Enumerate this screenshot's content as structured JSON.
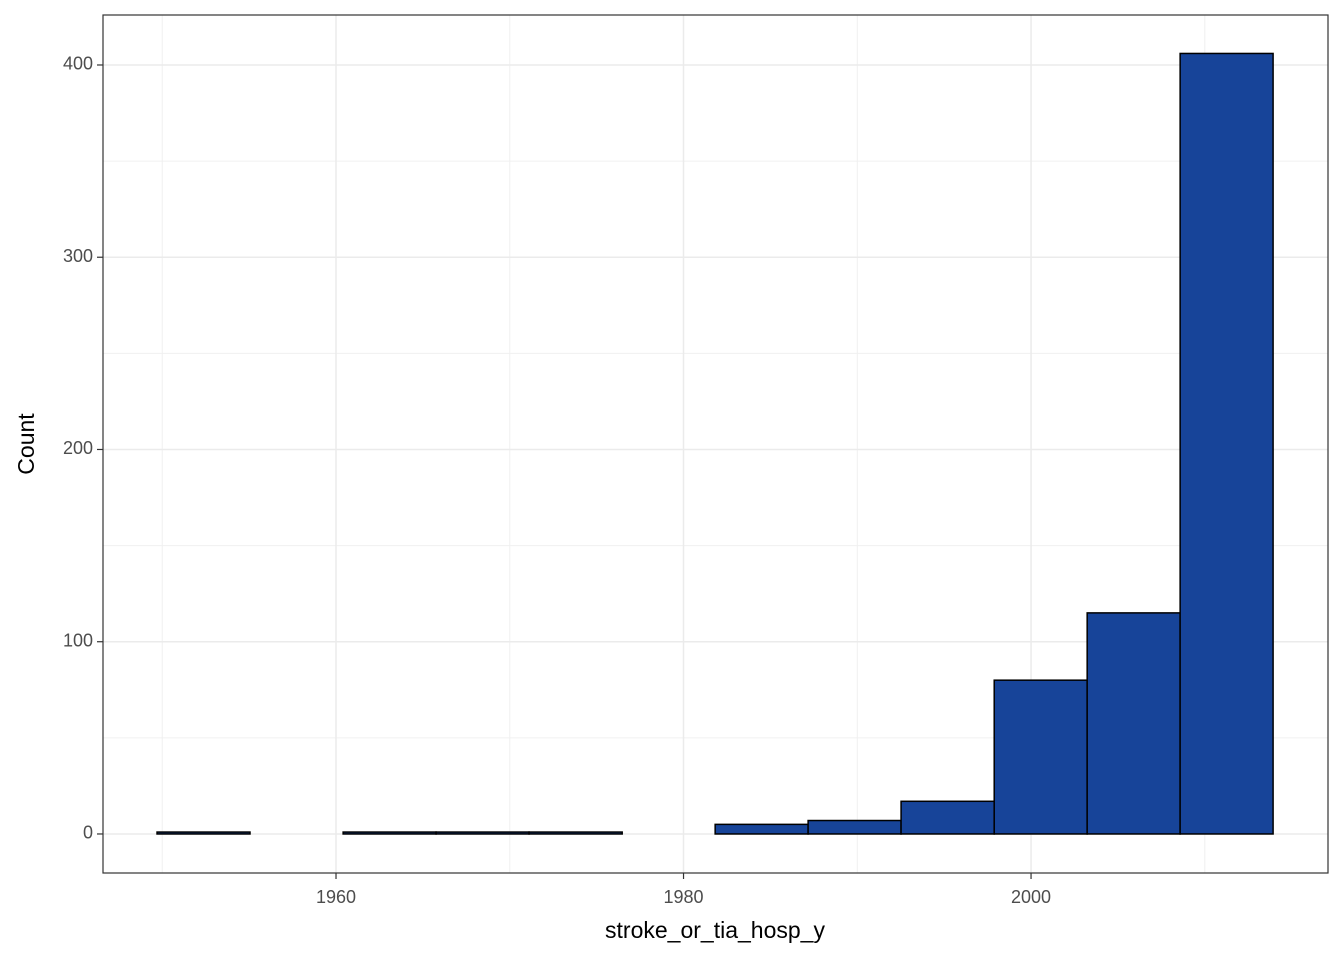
{
  "chart_data": {
    "type": "histogram",
    "x_label": "stroke_or_tia_hosp_y",
    "y_label": "Count",
    "bins": [
      1949.7,
      1955.05,
      1960.41,
      1965.76,
      1971.11,
      1976.47,
      1981.82,
      1987.17,
      1992.52,
      1997.88,
      2003.23,
      2008.58,
      2013.93
    ],
    "counts": [
      1,
      0,
      1,
      1,
      1,
      0,
      5,
      7,
      17,
      80,
      115,
      406
    ],
    "color": "#174499",
    "xlim": [
      1946.59,
      2017.09
    ],
    "xticks": [
      1960,
      1980,
      2000
    ],
    "xminorticks": [
      1950,
      1970,
      1990,
      2010
    ],
    "ylim": [
      -20.3,
      426
    ],
    "yticks": [
      0,
      100,
      200,
      300,
      400
    ],
    "yminorticks": [
      50,
      150,
      250,
      350
    ],
    "grid": true
  }
}
